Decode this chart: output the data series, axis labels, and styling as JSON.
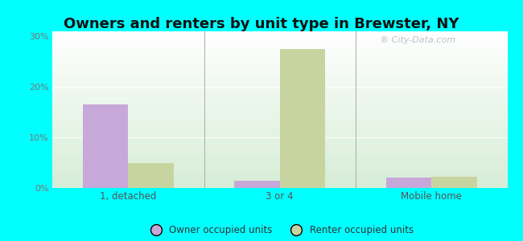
{
  "title": "Owners and renters by unit type in Brewster, NY",
  "categories": [
    "1, detached",
    "3 or 4",
    "Mobile home"
  ],
  "owner_values": [
    16.5,
    1.5,
    2.0
  ],
  "renter_values": [
    5.0,
    27.5,
    2.2
  ],
  "owner_color": "#c8a8d8",
  "renter_color": "#c8d4a0",
  "ylim": [
    0,
    31
  ],
  "yticks": [
    0,
    10,
    20,
    30
  ],
  "yticklabels": [
    "0%",
    "10%",
    "20%",
    "30%"
  ],
  "outer_background": "#00ffff",
  "bar_width": 0.3,
  "title_fontsize": 13,
  "legend_labels": [
    "Owner occupied units",
    "Renter occupied units"
  ],
  "watermark": "City-Data.com"
}
